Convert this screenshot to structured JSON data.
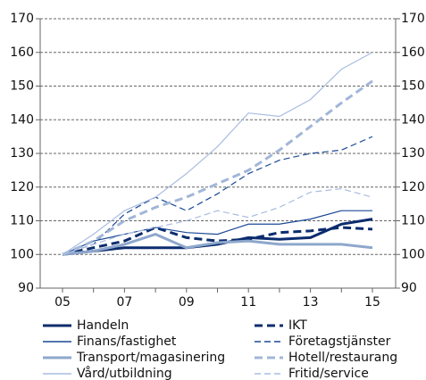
{
  "chart_data": {
    "type": "line",
    "categories": [
      "05",
      null,
      "07",
      null,
      "09",
      null,
      "11",
      null,
      "13",
      null,
      "15"
    ],
    "ylim": [
      90,
      170
    ],
    "yticks": [
      90,
      100,
      110,
      120,
      130,
      140,
      150,
      160,
      170
    ],
    "right_axis": true,
    "grid": true,
    "series": [
      {
        "name": "Handeln",
        "color": "#0b2c6e",
        "dash": false,
        "weight": "thick",
        "values": [
          100,
          101,
          102,
          102,
          102,
          103,
          105,
          104.5,
          105,
          109,
          110.5
        ]
      },
      {
        "name": "IKT",
        "color": "#0b2c6e",
        "dash": true,
        "weight": "thick",
        "values": [
          100,
          102,
          104,
          108,
          105,
          104,
          104.5,
          106.5,
          107,
          108,
          107.5
        ]
      },
      {
        "name": "Finans/fastighet",
        "color": "#1c4996",
        "dash": false,
        "weight": "thin",
        "values": [
          100,
          104,
          106,
          108,
          106.5,
          106,
          109,
          109,
          110.5,
          113,
          113
        ]
      },
      {
        "name": "Företagstjänster",
        "color": "#1c4996",
        "dash": true,
        "weight": "thin",
        "values": [
          100,
          103,
          112,
          117,
          113,
          118,
          124,
          128,
          130,
          131,
          135
        ]
      },
      {
        "name": "Transport/magasinering",
        "color": "#8ea7cc",
        "dash": false,
        "weight": "thick",
        "values": [
          100,
          101,
          103,
          106,
          102,
          103.5,
          104,
          103,
          103,
          103,
          102
        ]
      },
      {
        "name": "Hotell/restaurang",
        "color": "#a1b6d8",
        "dash": true,
        "weight": "thick",
        "values": [
          100,
          104,
          110,
          114,
          117,
          121,
          125,
          131,
          138,
          145,
          151.5
        ]
      },
      {
        "name": "Vård/utbildning",
        "color": "#a9bde0",
        "dash": false,
        "weight": "thin",
        "values": [
          100,
          106,
          113,
          117,
          124,
          132,
          142,
          141,
          146,
          155,
          160
        ]
      },
      {
        "name": "Fritid/service",
        "color": "#a9bde0",
        "dash": true,
        "weight": "thin",
        "values": [
          100,
          103,
          106,
          108,
          110,
          113,
          111,
          114,
          118.5,
          119.5,
          117
        ]
      }
    ]
  }
}
